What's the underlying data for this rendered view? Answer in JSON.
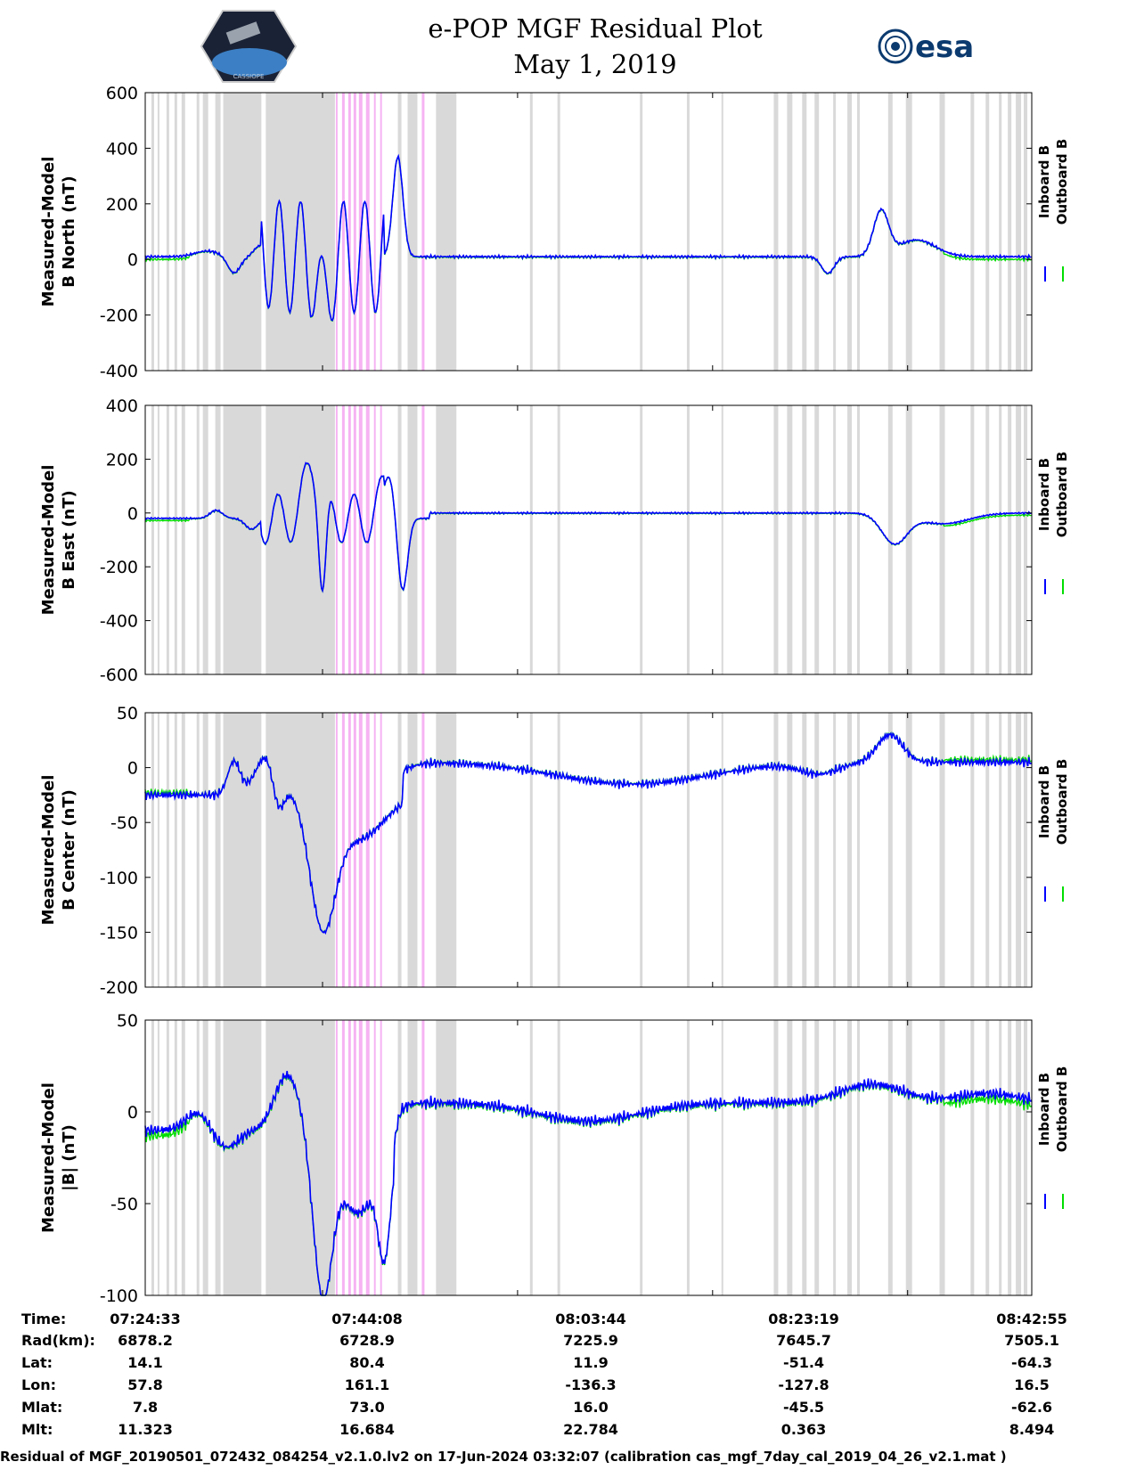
{
  "header": {
    "title_line1": "e-POP MGF Residual Plot",
    "title_line2": "May 1, 2019",
    "left_logo": "cassiope-mission-logo",
    "left_logo_text": "CASSIOPE",
    "right_logo_text": "esa"
  },
  "colors": {
    "inboard": "#0000ff",
    "outboard": "#00dd00",
    "gray_band": "#d9d9d9",
    "pink_band": "#f6b3f3"
  },
  "chart_data": [
    {
      "type": "line",
      "id": "b-north",
      "ylabel_line1": "Measured-Model",
      "ylabel_line2": "B North (nT)",
      "ylim": [
        -400,
        600
      ],
      "yticks": [
        "600",
        "400",
        "200",
        "0",
        "-200",
        "-400"
      ],
      "ytick_values": [
        600,
        400,
        200,
        0,
        -200,
        -400
      ],
      "legend": [
        "Inboard B",
        "Outboard B"
      ],
      "series": [
        {
          "name": "Inboard B",
          "x_min": [
            0,
            4,
            8,
            12,
            20,
            25,
            27,
            30,
            32,
            33,
            35,
            37,
            38,
            39,
            40,
            41,
            42,
            44,
            45,
            47,
            49,
            52,
            55,
            57,
            62,
            70,
            80,
            85,
            90,
            100,
            110,
            116,
            119,
            120,
            121,
            122,
            123,
            124,
            125,
            126,
            127,
            128,
            129,
            130,
            131,
            133,
            136,
            139,
            142,
            145,
            148,
            152,
            155,
            158,
            160,
            162,
            164,
            166,
            168,
            170,
            172,
            174,
            176,
            178,
            180,
            182,
            184,
            186,
            188,
            190,
            192,
            194,
            196,
            198,
            200,
            205,
            210,
            215,
            222,
            230,
            240,
            260,
            280,
            300,
            320,
            330,
            340,
            350,
            360,
            370,
            380,
            390,
            400,
            410,
            420,
            430,
            440,
            450,
            460,
            470,
            480,
            490,
            500,
            520,
            540,
            560,
            580,
            600,
            620,
            640,
            660,
            680,
            700,
            720,
            740,
            760,
            780,
            800,
            820,
            840,
            860,
            880,
            900,
            920,
            940,
            960,
            980,
            1000,
            1020,
            1040,
            1060,
            1080,
            1100,
            1120,
            1140,
            1160
          ],
          "values": [
            -5,
            5,
            10,
            12,
            30,
            40,
            45,
            35,
            20,
            -10,
            -30,
            -20,
            -40,
            -15,
            -20,
            -10,
            30,
            40,
            25,
            15,
            5,
            10,
            0,
            -40,
            -50,
            -30,
            -10,
            10,
            20,
            15,
            10,
            40,
            20,
            5,
            10,
            20,
            40,
            60,
            80,
            70,
            40,
            20,
            0,
            -20,
            -40,
            -60,
            -80,
            -60,
            -20,
            20,
            60,
            80,
            50,
            20,
            0,
            20,
            40,
            30,
            10,
            20,
            40,
            80,
            140,
            240,
            150,
            80,
            20,
            -40,
            -100,
            -150,
            -200,
            -250,
            -200,
            -150,
            -100,
            -80,
            -50,
            -20,
            -10,
            -5,
            0,
            5,
            -5,
            10,
            5,
            0,
            -5,
            0,
            5,
            0,
            -5,
            0,
            5,
            0,
            -5,
            0,
            5,
            0,
            -5,
            0,
            5,
            0,
            -5,
            0,
            5,
            0,
            -5,
            0,
            5,
            0,
            -5,
            0,
            5,
            0,
            -5,
            0,
            5,
            0,
            -5,
            0,
            5,
            0,
            -5,
            0,
            5,
            0,
            -5,
            0,
            5,
            0,
            -5,
            0,
            5,
            0,
            -5,
            0,
            5,
            0,
            -5,
            0,
            5,
            0,
            -5,
            0
          ]
        },
        {
          "name": "Outboard B",
          "offset": -10
        }
      ]
    },
    {
      "type": "line",
      "id": "b-east",
      "ylabel_line1": "Measured-Model",
      "ylabel_line2": "B East (nT)",
      "ylim": [
        -600,
        400
      ],
      "yticks": [
        "400",
        "200",
        "0",
        "-200",
        "-400",
        "-600"
      ],
      "ytick_values": [
        400,
        200,
        0,
        -200,
        -400,
        -600
      ],
      "legend": [
        "Inboard B",
        "Outboard B"
      ],
      "series": [
        {
          "name": "Inboard B",
          "offset": 0
        },
        {
          "name": "Outboard B",
          "offset": -8
        }
      ]
    },
    {
      "type": "line",
      "id": "b-center",
      "ylabel_line1": "Measured-Model",
      "ylabel_line2": "B Center (nT)",
      "ylim": [
        -200,
        50
      ],
      "yticks": [
        "50",
        "0",
        "-50",
        "-100",
        "-150",
        "-200"
      ],
      "ytick_values": [
        50,
        0,
        -50,
        -100,
        -150,
        -200
      ],
      "legend": [
        "Inboard B",
        "Outboard B"
      ],
      "series": [
        {
          "name": "Inboard B",
          "offset": 0
        },
        {
          "name": "Outboard B",
          "offset": 2
        }
      ]
    },
    {
      "type": "line",
      "id": "b-mag",
      "ylabel_line1": "Measured-Model",
      "ylabel_line2": "|B| (nT)",
      "ylim": [
        -100,
        50
      ],
      "yticks": [
        "50",
        "0",
        "-50",
        "-100"
      ],
      "ytick_values": [
        50,
        0,
        -50,
        -100
      ],
      "legend": [
        "Inboard B",
        "Outboard B"
      ],
      "series": [
        {
          "name": "Inboard B",
          "offset": 0
        },
        {
          "name": "Outboard B",
          "offset": -3
        }
      ]
    }
  ],
  "x_axis": {
    "tick_fractions": [
      0.0,
      0.2,
      0.42,
      0.64,
      0.86,
      1.0
    ],
    "orbit_table": {
      "row_labels": [
        "Time:",
        "Rad(km):",
        "Lat:",
        "Lon:",
        "Mlat:",
        "Mlt:"
      ],
      "columns": [
        [
          "07:24:33",
          "6878.2",
          "14.1",
          "57.8",
          "7.8",
          "11.323"
        ],
        [
          "07:44:08",
          "6728.9",
          "80.4",
          "161.1",
          "73.0",
          "16.684"
        ],
        [
          "08:03:44",
          "7225.9",
          "11.9",
          "-136.3",
          "16.0",
          "22.784"
        ],
        [
          "08:23:19",
          "7645.7",
          "-51.4",
          "-127.8",
          "-45.5",
          "0.363"
        ],
        [
          "08:42:55",
          "7505.1",
          "-64.3",
          "16.5",
          "-62.6",
          "8.494"
        ]
      ]
    }
  },
  "footer": "Residual of MGF_20190501_072432_084254_v2.1.0.lv2 on 17-Jun-2024 03:32:07 (calibration cas_mgf_7day_cal_2019_04_26_v2.1.mat )"
}
